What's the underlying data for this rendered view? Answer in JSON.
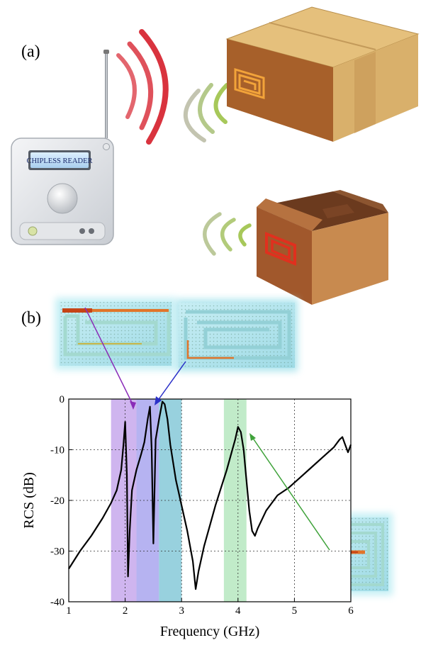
{
  "panels": {
    "a": "(a)",
    "b": "(b)"
  },
  "reader": {
    "screen_label": "CHIPLESS READER"
  },
  "icons": {
    "reader": "chipless-reader-device",
    "antenna": "antenna-icon",
    "waves": "radio-wave-icon",
    "box": "cardboard-box-icon",
    "tag": "chipless-tag-icon"
  },
  "colors": {
    "wave_red": "#d9333e",
    "wave_green": "#9ec34a",
    "tag_red": "#e0301e",
    "band_purple": "#a58be0",
    "band_blue": "#7fc6d3",
    "band_green": "#a8e0b0",
    "curve": "#000000"
  },
  "chart_data": {
    "type": "line",
    "xlabel": "Frequency (GHz)",
    "ylabel": "RCS (dB)",
    "xlim": [
      1,
      6
    ],
    "ylim": [
      -40,
      0
    ],
    "xticks": [
      1,
      2,
      3,
      4,
      5,
      6
    ],
    "yticks": [
      0,
      -10,
      -20,
      -30,
      -40
    ],
    "grid": true,
    "bands": [
      {
        "x0": 1.75,
        "x1": 2.2,
        "color": "#c7a8ec"
      },
      {
        "x0": 2.2,
        "x1": 2.6,
        "color": "#a9a6ee"
      },
      {
        "x0": 2.6,
        "x1": 3.0,
        "color": "#86c9d8"
      },
      {
        "x0": 3.75,
        "x1": 4.15,
        "color": "#b6e7c0"
      }
    ],
    "series": [
      {
        "x": [
          1.0,
          1.2,
          1.4,
          1.6,
          1.75,
          1.85,
          1.93,
          1.97,
          2.0,
          2.03,
          2.05,
          2.08,
          2.12,
          2.2,
          2.28,
          2.34,
          2.4,
          2.44,
          2.47,
          2.5,
          2.54,
          2.6,
          2.66,
          2.7,
          2.75,
          2.8,
          2.9,
          3.0,
          3.1,
          3.2,
          3.25,
          3.3,
          3.4,
          3.5,
          3.6,
          3.7,
          3.8,
          3.9,
          3.95,
          4.0,
          4.05,
          4.1,
          4.15,
          4.2,
          4.25,
          4.3,
          4.35,
          4.5,
          4.7,
          4.9,
          5.1,
          5.3,
          5.5,
          5.7,
          5.8,
          5.85,
          5.9,
          5.95,
          6.0
        ],
        "y": [
          -33.5,
          -30,
          -27,
          -23.5,
          -20.5,
          -18,
          -14,
          -9,
          -4.5,
          -15,
          -35,
          -26,
          -18,
          -14,
          -11,
          -8.5,
          -4,
          -1.5,
          -10,
          -28.5,
          -8,
          -4,
          -0.5,
          -1,
          -4,
          -9,
          -16,
          -21,
          -26,
          -32,
          -37.5,
          -34,
          -29,
          -25,
          -21,
          -17.5,
          -14,
          -10,
          -8,
          -5.5,
          -6.5,
          -10,
          -16,
          -22,
          -26,
          -27,
          -25.5,
          -22,
          -19,
          -17.5,
          -15.5,
          -13.5,
          -11.5,
          -9.5,
          -8,
          -7.5,
          -9,
          -10.5,
          -9
        ]
      }
    ]
  }
}
